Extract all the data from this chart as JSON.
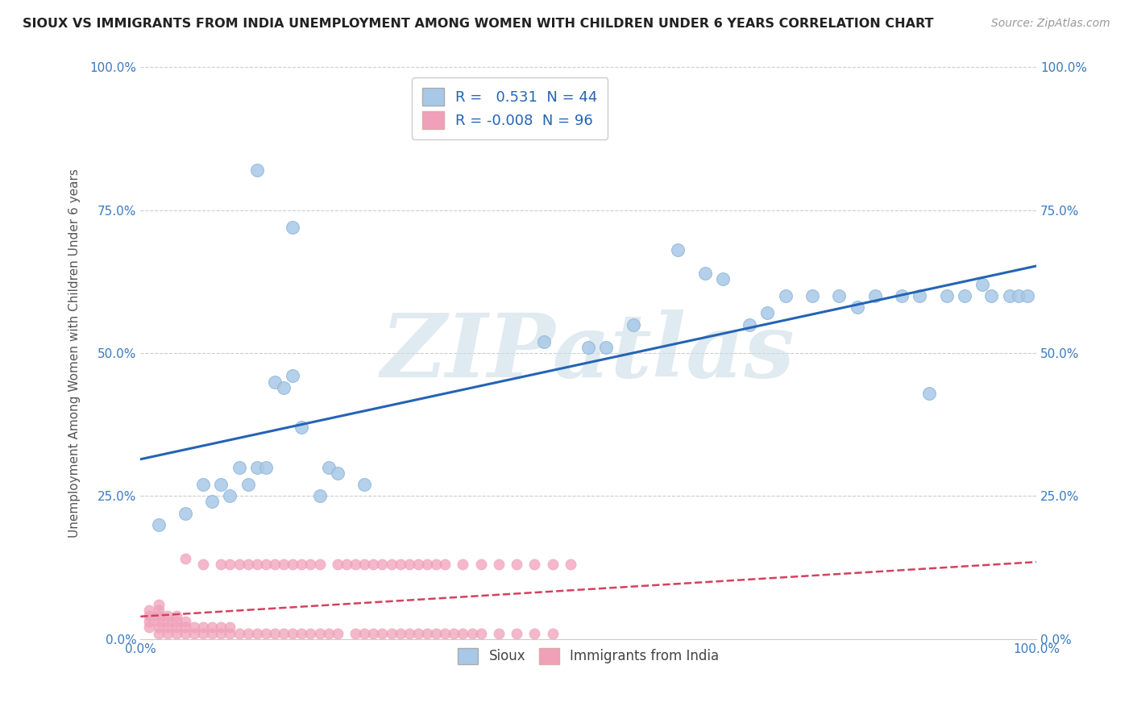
{
  "title": "SIOUX VS IMMIGRANTS FROM INDIA UNEMPLOYMENT AMONG WOMEN WITH CHILDREN UNDER 6 YEARS CORRELATION CHART",
  "source": "Source: ZipAtlas.com",
  "ylabel": "Unemployment Among Women with Children Under 6 years",
  "y_tick_labels": [
    "0.0%",
    "25.0%",
    "50.0%",
    "75.0%",
    "100.0%"
  ],
  "y_tick_values": [
    0,
    0.25,
    0.5,
    0.75,
    1.0
  ],
  "x_tick_labels": [
    "0.0%",
    "100.0%"
  ],
  "x_tick_values": [
    0,
    1.0
  ],
  "sioux_color": "#a8c8e8",
  "india_color": "#f0a0b8",
  "sioux_line_color": "#2464b4",
  "india_line_color": "#d44060",
  "background_color": "#ffffff",
  "watermark": "ZIPatlas",
  "watermark_color": "#ccdde8",
  "sioux_R": 0.531,
  "india_R": -0.008,
  "sioux_N": 44,
  "india_N": 96,
  "sioux_points_x": [
    0.02,
    0.05,
    0.07,
    0.08,
    0.09,
    0.1,
    0.11,
    0.12,
    0.13,
    0.14,
    0.15,
    0.16,
    0.17,
    0.18,
    0.2,
    0.21,
    0.22,
    0.25,
    0.45,
    0.5,
    0.52,
    0.55,
    0.6,
    0.63,
    0.65,
    0.68,
    0.7,
    0.72,
    0.75,
    0.78,
    0.8,
    0.82,
    0.85,
    0.87,
    0.88,
    0.9,
    0.92,
    0.94,
    0.95,
    0.97,
    0.98,
    0.99,
    0.13,
    0.17
  ],
  "sioux_points_y": [
    0.2,
    0.22,
    0.27,
    0.24,
    0.27,
    0.25,
    0.3,
    0.27,
    0.3,
    0.3,
    0.45,
    0.44,
    0.46,
    0.37,
    0.25,
    0.3,
    0.29,
    0.27,
    0.52,
    0.51,
    0.51,
    0.55,
    0.68,
    0.64,
    0.63,
    0.55,
    0.57,
    0.6,
    0.6,
    0.6,
    0.58,
    0.6,
    0.6,
    0.6,
    0.43,
    0.6,
    0.6,
    0.62,
    0.6,
    0.6,
    0.6,
    0.6,
    0.82,
    0.72
  ],
  "india_points_x": [
    0.01,
    0.01,
    0.01,
    0.01,
    0.02,
    0.02,
    0.02,
    0.02,
    0.02,
    0.02,
    0.03,
    0.03,
    0.03,
    0.03,
    0.04,
    0.04,
    0.04,
    0.04,
    0.05,
    0.05,
    0.05,
    0.06,
    0.06,
    0.07,
    0.07,
    0.08,
    0.08,
    0.09,
    0.09,
    0.1,
    0.1,
    0.11,
    0.12,
    0.13,
    0.14,
    0.15,
    0.16,
    0.17,
    0.18,
    0.19,
    0.2,
    0.21,
    0.22,
    0.24,
    0.25,
    0.26,
    0.27,
    0.28,
    0.29,
    0.3,
    0.31,
    0.32,
    0.33,
    0.34,
    0.35,
    0.36,
    0.37,
    0.38,
    0.4,
    0.42,
    0.44,
    0.46,
    0.05,
    0.07,
    0.09,
    0.1,
    0.11,
    0.12,
    0.13,
    0.14,
    0.15,
    0.16,
    0.17,
    0.18,
    0.19,
    0.2,
    0.22,
    0.23,
    0.24,
    0.25,
    0.26,
    0.27,
    0.28,
    0.29,
    0.3,
    0.31,
    0.32,
    0.33,
    0.34,
    0.36,
    0.38,
    0.4,
    0.42,
    0.44,
    0.46,
    0.48
  ],
  "india_points_y": [
    0.02,
    0.03,
    0.04,
    0.05,
    0.01,
    0.02,
    0.03,
    0.04,
    0.05,
    0.06,
    0.01,
    0.02,
    0.03,
    0.04,
    0.01,
    0.02,
    0.03,
    0.04,
    0.01,
    0.02,
    0.03,
    0.01,
    0.02,
    0.01,
    0.02,
    0.01,
    0.02,
    0.01,
    0.02,
    0.01,
    0.02,
    0.01,
    0.01,
    0.01,
    0.01,
    0.01,
    0.01,
    0.01,
    0.01,
    0.01,
    0.01,
    0.01,
    0.01,
    0.01,
    0.01,
    0.01,
    0.01,
    0.01,
    0.01,
    0.01,
    0.01,
    0.01,
    0.01,
    0.01,
    0.01,
    0.01,
    0.01,
    0.01,
    0.01,
    0.01,
    0.01,
    0.01,
    0.14,
    0.13,
    0.13,
    0.13,
    0.13,
    0.13,
    0.13,
    0.13,
    0.13,
    0.13,
    0.13,
    0.13,
    0.13,
    0.13,
    0.13,
    0.13,
    0.13,
    0.13,
    0.13,
    0.13,
    0.13,
    0.13,
    0.13,
    0.13,
    0.13,
    0.13,
    0.13,
    0.13,
    0.13,
    0.13,
    0.13,
    0.13,
    0.13,
    0.13
  ]
}
